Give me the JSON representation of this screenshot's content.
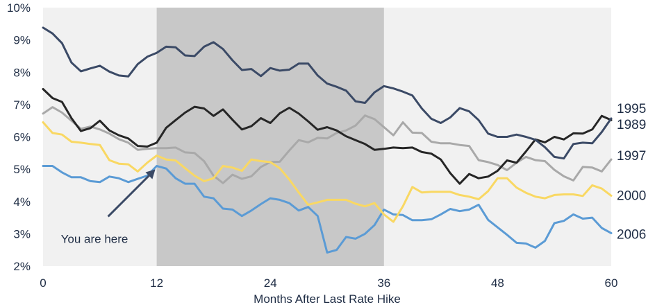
{
  "chart_data": {
    "type": "line",
    "xlabel": "Months After Last Rate Hike",
    "ylabel": "",
    "xlim": [
      0,
      60
    ],
    "ylim": [
      2,
      10
    ],
    "x_ticks": [
      0,
      12,
      24,
      36,
      48,
      60
    ],
    "y_ticks": [
      2,
      3,
      4,
      5,
      6,
      7,
      8,
      9,
      10
    ],
    "y_tick_format": "%",
    "grid": false,
    "legend": "right",
    "colors": {
      "plot_bg": "#f1f1f1",
      "highlight_band": "#c8c8c8",
      "text": "#1f2d45"
    },
    "highlight_band": {
      "x_start": 12,
      "x_end": 36
    },
    "annotation": {
      "text": "You are here",
      "x": 12,
      "y": 5.08,
      "text_x": 1,
      "text_y": 2.85
    },
    "x": [
      0,
      1,
      2,
      3,
      4,
      5,
      6,
      7,
      8,
      9,
      10,
      11,
      12,
      13,
      14,
      15,
      16,
      17,
      18,
      19,
      20,
      21,
      22,
      23,
      24,
      25,
      26,
      27,
      28,
      29,
      30,
      31,
      32,
      33,
      34,
      35,
      36,
      37,
      38,
      39,
      40,
      41,
      42,
      43,
      44,
      45,
      46,
      47,
      48,
      49,
      50,
      51,
      52,
      53,
      54,
      55,
      56,
      57,
      58,
      59,
      60
    ],
    "series": [
      {
        "name": "1995",
        "color": "#3b4a66",
        "values": [
          9.38,
          9.2,
          8.9,
          8.3,
          8.03,
          8.12,
          8.2,
          8.02,
          7.9,
          7.87,
          8.25,
          8.48,
          8.6,
          8.79,
          8.77,
          8.52,
          8.5,
          8.79,
          8.93,
          8.72,
          8.37,
          8.07,
          8.1,
          7.88,
          8.13,
          8.05,
          8.08,
          8.27,
          8.27,
          7.9,
          7.65,
          7.55,
          7.43,
          7.1,
          7.05,
          7.38,
          7.57,
          7.5,
          7.4,
          7.28,
          6.88,
          6.56,
          6.43,
          6.6,
          6.89,
          6.79,
          6.52,
          6.1,
          6.0,
          6.0,
          6.07,
          6.0,
          5.91,
          5.68,
          5.38,
          5.33,
          5.78,
          5.82,
          5.8,
          6.15,
          6.57
        ]
      },
      {
        "name": "1989",
        "color": "#262626",
        "values": [
          7.48,
          7.2,
          7.08,
          6.58,
          6.18,
          6.27,
          6.5,
          6.2,
          6.05,
          5.95,
          5.72,
          5.7,
          5.82,
          6.28,
          6.52,
          6.75,
          6.93,
          6.88,
          6.65,
          6.85,
          6.53,
          6.23,
          6.33,
          6.58,
          6.43,
          6.73,
          6.9,
          6.72,
          6.48,
          6.22,
          6.3,
          6.2,
          6.02,
          5.9,
          5.78,
          5.6,
          5.63,
          5.67,
          5.65,
          5.67,
          5.53,
          5.48,
          5.3,
          4.88,
          4.55,
          4.85,
          4.72,
          4.77,
          4.95,
          5.27,
          5.2,
          5.55,
          5.92,
          5.83,
          6.0,
          5.92,
          6.11,
          6.1,
          6.23,
          6.65,
          6.52
        ]
      },
      {
        "name": "1997",
        "color": "#a9a9a9",
        "values": [
          6.72,
          6.92,
          6.75,
          6.5,
          6.25,
          6.32,
          6.23,
          6.1,
          5.93,
          5.82,
          5.6,
          5.63,
          5.65,
          5.65,
          5.67,
          5.52,
          5.5,
          5.25,
          4.8,
          4.57,
          4.83,
          4.7,
          4.78,
          5.07,
          5.22,
          5.23,
          5.58,
          5.9,
          5.83,
          5.97,
          5.95,
          6.12,
          6.2,
          6.35,
          6.66,
          6.55,
          6.3,
          6.05,
          6.45,
          6.13,
          6.12,
          5.85,
          5.8,
          5.8,
          5.75,
          5.72,
          5.28,
          5.22,
          5.13,
          4.97,
          5.2,
          5.38,
          5.28,
          5.25,
          4.98,
          4.78,
          4.65,
          5.07,
          5.05,
          4.93,
          5.3
        ]
      },
      {
        "name": "2000",
        "color": "#f9d863",
        "values": [
          6.45,
          6.12,
          6.07,
          5.85,
          5.82,
          5.78,
          5.75,
          5.28,
          5.17,
          5.15,
          4.93,
          5.2,
          5.42,
          5.3,
          5.27,
          5.03,
          4.8,
          4.63,
          4.72,
          5.1,
          5.05,
          4.95,
          5.3,
          5.25,
          5.22,
          5.03,
          4.68,
          4.28,
          3.9,
          3.97,
          4.05,
          4.05,
          4.05,
          3.93,
          3.85,
          3.95,
          3.6,
          3.37,
          3.85,
          4.45,
          4.28,
          4.3,
          4.3,
          4.3,
          4.2,
          4.15,
          4.07,
          4.32,
          4.72,
          4.72,
          4.43,
          4.27,
          4.15,
          4.1,
          4.2,
          4.22,
          4.22,
          4.17,
          4.5,
          4.4,
          4.18
        ]
      },
      {
        "name": "2006",
        "color": "#5b9bd5",
        "values": [
          5.1,
          5.1,
          4.9,
          4.75,
          4.75,
          4.63,
          4.6,
          4.77,
          4.72,
          4.6,
          4.7,
          4.8,
          5.1,
          5.02,
          4.72,
          4.55,
          4.55,
          4.15,
          4.1,
          3.78,
          3.75,
          3.55,
          3.72,
          3.92,
          4.1,
          4.05,
          3.95,
          3.72,
          3.83,
          3.55,
          2.42,
          2.5,
          2.9,
          2.85,
          3.0,
          3.27,
          3.75,
          3.6,
          3.58,
          3.42,
          3.42,
          3.45,
          3.6,
          3.77,
          3.7,
          3.75,
          3.9,
          3.43,
          3.2,
          2.97,
          2.72,
          2.7,
          2.57,
          2.78,
          3.33,
          3.4,
          3.6,
          3.47,
          3.5,
          3.18,
          3.02
        ]
      }
    ],
    "series_label_y": {
      "1995": 6.89,
      "1989": 6.4,
      "1997": 5.43,
      "2000": 4.2,
      "2006": 3.0
    }
  }
}
